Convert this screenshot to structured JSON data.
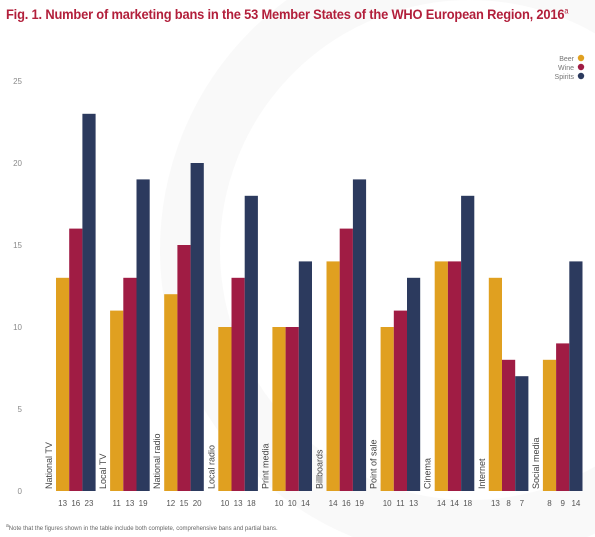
{
  "figure": {
    "title_prefix": "Fig. 1.",
    "title_text": "Number of marketing bans in the 53 Member States of the WHO European Region, 2016",
    "title_marker": "a",
    "footnote_marker": "a",
    "footnote": "Note that the figures shown in the table include both complete, comprehensive bans and partial bans."
  },
  "colors": {
    "beer": "#e0a020",
    "wine": "#a01c44",
    "spirits": "#2c3a5e",
    "title": "#b21f3b",
    "axis_text": "#8a8a8a"
  },
  "chart_data": {
    "type": "bar",
    "title": "Number of marketing bans in the 53 Member States of the WHO European Region, 2016",
    "categories": [
      "National TV",
      "Local TV",
      "National radio",
      "Local radio",
      "Print media",
      "Billboards",
      "Point of sale",
      "Cinema",
      "Internet",
      "Social media"
    ],
    "series": [
      {
        "name": "Beer",
        "values": [
          13,
          11,
          12,
          10,
          10,
          14,
          10,
          14,
          13,
          8
        ]
      },
      {
        "name": "Wine",
        "values": [
          16,
          13,
          15,
          13,
          10,
          16,
          11,
          14,
          8,
          9
        ]
      },
      {
        "name": "Spirits",
        "values": [
          23,
          19,
          20,
          18,
          14,
          19,
          13,
          18,
          7,
          14
        ]
      }
    ],
    "yticks": [
      0,
      5,
      10,
      15,
      20,
      25
    ],
    "ylim": [
      0,
      25
    ],
    "legend_position": "top-right",
    "grid": false,
    "data_labels_position": "below axis"
  }
}
